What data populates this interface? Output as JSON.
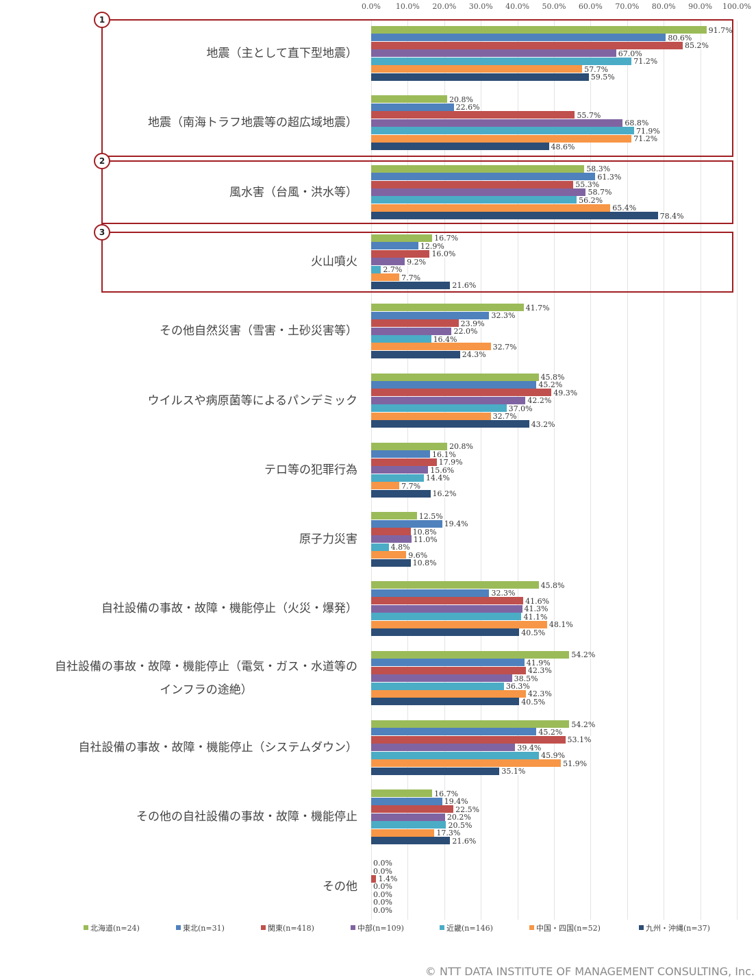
{
  "chart_data": {
    "type": "bar",
    "orientation": "horizontal",
    "title": "",
    "xlabel": "",
    "ylabel": "",
    "xlim": [
      0,
      100
    ],
    "x_ticks": [
      "0.0%",
      "10.0%",
      "20.0%",
      "30.0%",
      "40.0%",
      "50.0%",
      "60.0%",
      "70.0%",
      "80.0%",
      "90.0%",
      "100.0%"
    ],
    "grid": true,
    "legend_position": "bottom",
    "categories": [
      "地震（主として直下型地震）",
      "地震（南海トラフ地震等の超広域地震）",
      "風水害（台風・洪水等）",
      "火山噴火",
      "その他自然災害（雪害・土砂災害等）",
      "ウイルスや病原菌等によるパンデミック",
      "テロ等の犯罪行為",
      "原子力災害",
      "自社設備の事故・故障・機能停止（火災・爆発）",
      "自社設備の事故・故障・機能停止（電気・ガス・水道等のインフラの途絶）",
      "自社設備の事故・故障・機能停止（システムダウン）",
      "その他の自社設備の事故・故障・機能停止",
      "その他"
    ],
    "category_display": [
      [
        "地震（主として直下型地震）"
      ],
      [
        "地震（南海トラフ地震等の超広域地震）"
      ],
      [
        "風水害（台風・洪水等）"
      ],
      [
        "火山噴火"
      ],
      [
        "その他自然災害（雪害・土砂災害等）"
      ],
      [
        "ウイルスや病原菌等によるパンデミック"
      ],
      [
        "テロ等の犯罪行為"
      ],
      [
        "原子力災害"
      ],
      [
        "自社設備の事故・故障・機能停止（火災・爆発）"
      ],
      [
        "自社設備の事故・故障・機能停止（電気・ガス・水道等の",
        "インフラの途絶）"
      ],
      [
        "自社設備の事故・故障・機能停止（システムダウン）"
      ],
      [
        "その他の自社設備の事故・故障・機能停止"
      ],
      [
        "その他"
      ]
    ],
    "series": [
      {
        "name": "北海道(n=24)",
        "color": "#9bbb59",
        "values": [
          91.7,
          20.8,
          58.3,
          16.7,
          41.7,
          45.8,
          20.8,
          12.5,
          45.8,
          54.2,
          54.2,
          16.7,
          0.0
        ]
      },
      {
        "name": "東北(n=31)",
        "color": "#4f81bd",
        "values": [
          80.6,
          22.6,
          61.3,
          12.9,
          32.3,
          45.2,
          16.1,
          19.4,
          32.3,
          41.9,
          45.2,
          19.4,
          0.0
        ]
      },
      {
        "name": "関東(n=418)",
        "color": "#c0504d",
        "values": [
          85.2,
          55.7,
          55.3,
          16.0,
          23.9,
          49.3,
          17.9,
          10.8,
          41.6,
          42.3,
          53.1,
          22.5,
          1.4
        ]
      },
      {
        "name": "中部(n=109)",
        "color": "#8064a2",
        "values": [
          67.0,
          68.8,
          58.7,
          9.2,
          22.0,
          42.2,
          15.6,
          11.0,
          41.3,
          38.5,
          39.4,
          20.2,
          0.0
        ]
      },
      {
        "name": "近畿(n=146)",
        "color": "#4bacc6",
        "values": [
          71.2,
          71.9,
          56.2,
          2.7,
          16.4,
          37.0,
          14.4,
          4.8,
          41.1,
          36.3,
          45.9,
          20.5,
          0.0
        ]
      },
      {
        "name": "中国・四国(n=52)",
        "color": "#f79646",
        "values": [
          57.7,
          71.2,
          65.4,
          7.7,
          32.7,
          32.7,
          7.7,
          9.6,
          48.1,
          42.3,
          51.9,
          17.3,
          0.0
        ]
      },
      {
        "name": "九州・沖縄(n=37)",
        "color": "#2c4d75",
        "values": [
          59.5,
          48.6,
          78.4,
          21.6,
          24.3,
          43.2,
          16.2,
          10.8,
          40.5,
          40.5,
          35.1,
          21.6,
          0.0
        ]
      }
    ],
    "annotations": [
      {
        "label": "1",
        "covers_categories": [
          0,
          1
        ]
      },
      {
        "label": "2",
        "covers_categories": [
          2
        ]
      },
      {
        "label": "3",
        "covers_categories": [
          3
        ]
      }
    ]
  },
  "footer": {
    "copyright": "© NTT DATA INSTITUTE OF MANAGEMENT CONSULTING, Inc."
  },
  "colors": {
    "highlight_border": "#a01e22",
    "gridline": "#e3e3e3"
  }
}
